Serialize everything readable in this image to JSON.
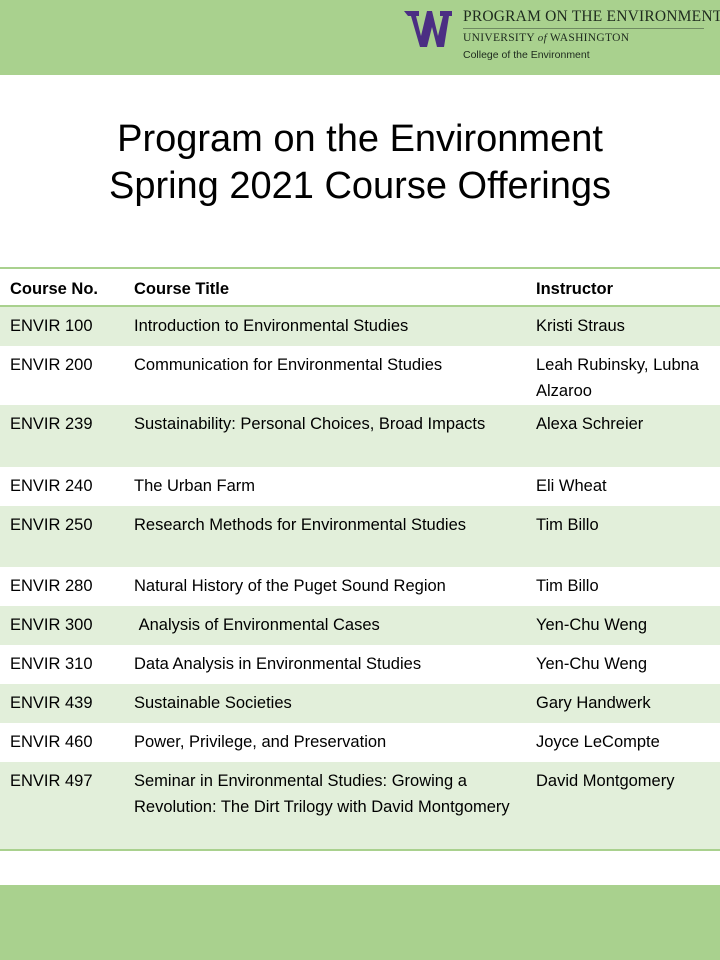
{
  "header": {
    "logo": {
      "mark": "W",
      "line1": "PROGRAM ON THE ENVIRONMENT",
      "line2_pre": "UNIVERSITY",
      "line2_of": "of",
      "line2_post": "WASHINGTON",
      "line3": "College of the Environment",
      "mark_color": "#4b2e83"
    },
    "title_line1": "Program on the Environment",
    "title_line2": "Spring 2021 Course Offerings"
  },
  "colors": {
    "band": "#a9d18e",
    "row_shade": "#e2efda"
  },
  "table": {
    "columns": [
      "Course No.",
      "Course Title",
      "Instructor"
    ],
    "rows": [
      {
        "no": "ENVIR 100",
        "title": "Introduction to Environmental Studies",
        "instructor": "Kristi Straus"
      },
      {
        "no": "ENVIR 200",
        "title": "Communication for Environmental Studies",
        "instructor": "Leah Rubinsky, Lubna Alzaroo"
      },
      {
        "no": "ENVIR 239",
        "title": "Sustainability: Personal Choices, Broad Impacts",
        "instructor": "Alexa Schreier"
      },
      {
        "no": "ENVIR 240",
        "title": "The Urban Farm",
        "instructor": "Eli Wheat"
      },
      {
        "no": "ENVIR 250",
        "title": "Research Methods for Environmental Studies",
        "instructor": "Tim Billo"
      },
      {
        "no": "ENVIR 280",
        "title": "Natural History of the Puget Sound Region",
        "instructor": "Tim Billo"
      },
      {
        "no": "ENVIR 300",
        "title": " Analysis of Environmental Cases",
        "instructor": "Yen-Chu Weng"
      },
      {
        "no": "ENVIR 310",
        "title": "Data Analysis in Environmental Studies",
        "instructor": "Yen-Chu Weng"
      },
      {
        "no": "ENVIR 439",
        "title": "Sustainable Societies",
        "instructor": "Gary Handwerk"
      },
      {
        "no": "ENVIR 460",
        "title": "Power, Privilege, and Preservation",
        "instructor": "Joyce LeCompte"
      },
      {
        "no": "ENVIR 497",
        "title": "Seminar in Environmental Studies: Growing a Revolution: The Dirt Trilogy with David Montgomery",
        "instructor": "David Montgomery"
      }
    ]
  }
}
